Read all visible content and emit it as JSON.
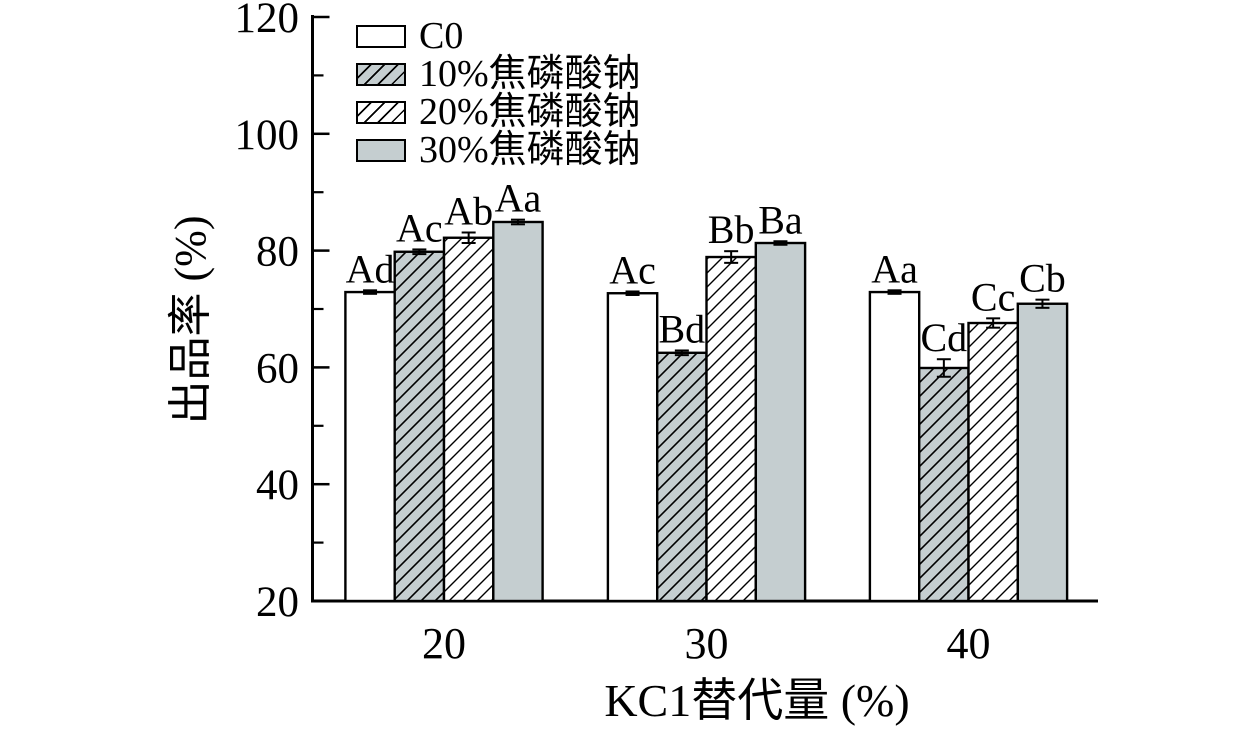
{
  "chart_data": {
    "type": "bar",
    "title": "",
    "ylabel": "出品率 (%)",
    "xlabel": "KC1替代量 (%)",
    "ylim": [
      20,
      120
    ],
    "yticks_major": [
      20,
      40,
      60,
      80,
      100,
      120
    ],
    "yticks_minor": [
      30,
      50,
      70,
      90,
      110
    ],
    "grid": false,
    "legend_position": "top-left-inside",
    "categories": [
      "20",
      "30",
      "40"
    ],
    "series": [
      {
        "name": "C0",
        "fill": "white",
        "hatch": false,
        "values": [
          72.9,
          72.7,
          72.9
        ],
        "errors": [
          0.3,
          0.3,
          0.3
        ],
        "sig_labels": [
          "Ad",
          "Ac",
          "Aa"
        ]
      },
      {
        "name": "10%焦磷酸钠",
        "fill": "gray",
        "hatch": true,
        "values": [
          79.8,
          62.5,
          59.9
        ],
        "errors": [
          0.4,
          0.4,
          1.5
        ],
        "sig_labels": [
          "Ac",
          "Bd",
          "Cd"
        ]
      },
      {
        "name": "20%焦磷酸钠",
        "fill": "white",
        "hatch": true,
        "values": [
          82.2,
          78.9,
          67.6
        ],
        "errors": [
          0.9,
          1.0,
          0.8
        ],
        "sig_labels": [
          "Ab",
          "Bb",
          "Cc"
        ]
      },
      {
        "name": "30%焦磷酸钠",
        "fill": "gray",
        "hatch": false,
        "values": [
          84.9,
          81.3,
          70.9
        ],
        "errors": [
          0.4,
          0.3,
          0.7
        ],
        "sig_labels": [
          "Aa",
          "Ba",
          "Cb"
        ]
      }
    ],
    "colors": {
      "bar_gray_fill": "#c5ced0",
      "axis": "#000000"
    }
  }
}
